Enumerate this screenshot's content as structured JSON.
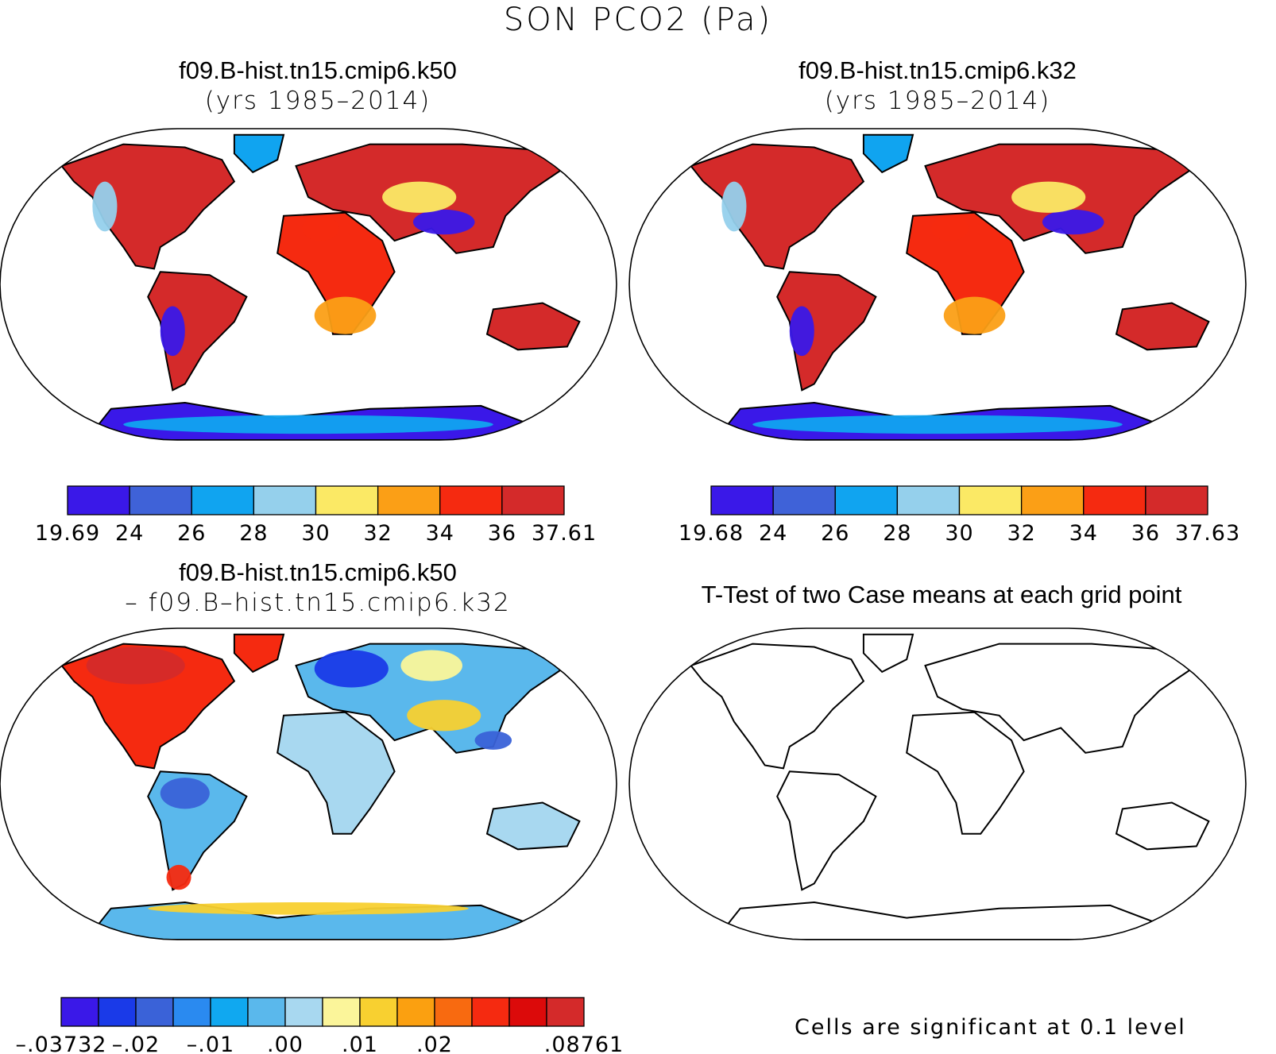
{
  "figure": {
    "title": "SON PCO2 (Pa)"
  },
  "panels": [
    {
      "id": "k50",
      "title_line1": "f09.B-hist.tn15.cmip6.k50",
      "title_line2": "(yrs 1985–2014)",
      "colorbar": {
        "colors": [
          "#3a18e8",
          "#3f62d8",
          "#10a4f0",
          "#95d0ec",
          "#fbe965",
          "#fb9f16",
          "#f52a10",
          "#d42a2a"
        ],
        "labels": [
          "19.69",
          "24",
          "26",
          "28",
          "30",
          "32",
          "34",
          "36",
          "37.61"
        ]
      }
    },
    {
      "id": "k32",
      "title_line1": "f09.B-hist.tn15.cmip6.k32",
      "title_line2": "(yrs 1985–2014)",
      "colorbar": {
        "colors": [
          "#3a18e8",
          "#3f62d8",
          "#10a4f0",
          "#95d0ec",
          "#fbe965",
          "#fb9f16",
          "#f52a10",
          "#d42a2a"
        ],
        "labels": [
          "19.68",
          "24",
          "26",
          "28",
          "30",
          "32",
          "34",
          "36",
          "37.63"
        ]
      }
    },
    {
      "id": "diff",
      "title_line1": "f09.B-hist.tn15.cmip6.k50",
      "title_line2": "– f09.B–hist.tn15.cmip6.k32",
      "colorbar": {
        "colors": [
          "#3a18e8",
          "#1a3ae8",
          "#3a62d8",
          "#2a8af0",
          "#10a8f0",
          "#5ab8ec",
          "#a8d8f0",
          "#fbf59a",
          "#f8d030",
          "#fba010",
          "#f86a10",
          "#f52a10",
          "#dc0a0a",
          "#d42a2a"
        ],
        "labels": [
          "–.03732",
          "–.02",
          "–.01",
          ".00",
          ".01",
          ".02",
          ".08761"
        ]
      }
    },
    {
      "id": "ttest",
      "title_line1": "T-Test of two Case means at each grid point",
      "footnote": "Cells are significant at 0.1 level"
    }
  ]
}
